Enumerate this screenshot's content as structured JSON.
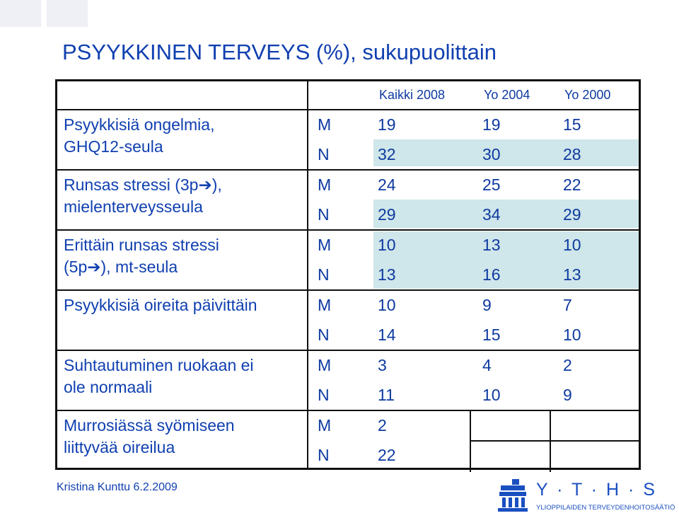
{
  "title": "PSYYKKINEN TERVEYS (%), sukupuolittain",
  "table": {
    "headers": [
      "Kaikki 2008",
      "Yo 2004",
      "Yo 2000"
    ],
    "groups": [
      {
        "label_lines": [
          "Psyykkisiä ongelmia,",
          "GHQ12-seula"
        ],
        "rows": [
          {
            "sex": "M",
            "values": [
              "19",
              "19",
              "15"
            ]
          },
          {
            "sex": "N",
            "values": [
              "32",
              "30",
              "28"
            ]
          }
        ]
      },
      {
        "label_lines": [
          "Runsas stressi (3p➔),",
          "mielenterveysseula"
        ],
        "rows": [
          {
            "sex": "M",
            "values": [
              "24",
              "25",
              "22"
            ]
          },
          {
            "sex": "N",
            "values": [
              "29",
              "34",
              "29"
            ]
          }
        ]
      },
      {
        "label_lines": [
          "Erittäin runsas stressi",
          "(5p➔), mt-seula"
        ],
        "rows": [
          {
            "sex": "M",
            "values": [
              "10",
              "13",
              "10"
            ]
          },
          {
            "sex": "N",
            "values": [
              "13",
              "16",
              "13"
            ]
          }
        ]
      },
      {
        "label_lines": [
          "Psyykkisiä oireita päivittäin"
        ],
        "rows": [
          {
            "sex": "M",
            "values": [
              "10",
              "9",
              "7"
            ]
          },
          {
            "sex": "N",
            "values": [
              "14",
              "15",
              "10"
            ]
          }
        ]
      },
      {
        "label_lines": [
          "Suhtautuminen ruokaan ei",
          "ole normaali"
        ],
        "rows": [
          {
            "sex": "M",
            "values": [
              "3",
              "4",
              "2"
            ]
          },
          {
            "sex": "N",
            "values": [
              "11",
              "10",
              "9"
            ]
          }
        ]
      },
      {
        "label_lines": [
          "Murrosiässä syömiseen",
          "liittyvää oireilua"
        ],
        "rows": [
          {
            "sex": "M",
            "values": [
              "2",
              "",
              ""
            ]
          },
          {
            "sex": "N",
            "values": [
              "22",
              "",
              ""
            ]
          }
        ]
      }
    ]
  },
  "footer": "Kristina Kunttu 6.2.2009",
  "logo": {
    "name": "Y · T · H · S",
    "subtitle": "YLIOPPILAIDEN TERVEYDENHOITOSÄÄTIÖ",
    "icon": "building-columns-icon"
  },
  "colors": {
    "text": "#0d3aa0",
    "shade": "#cfe6ea",
    "border": "#111111"
  }
}
